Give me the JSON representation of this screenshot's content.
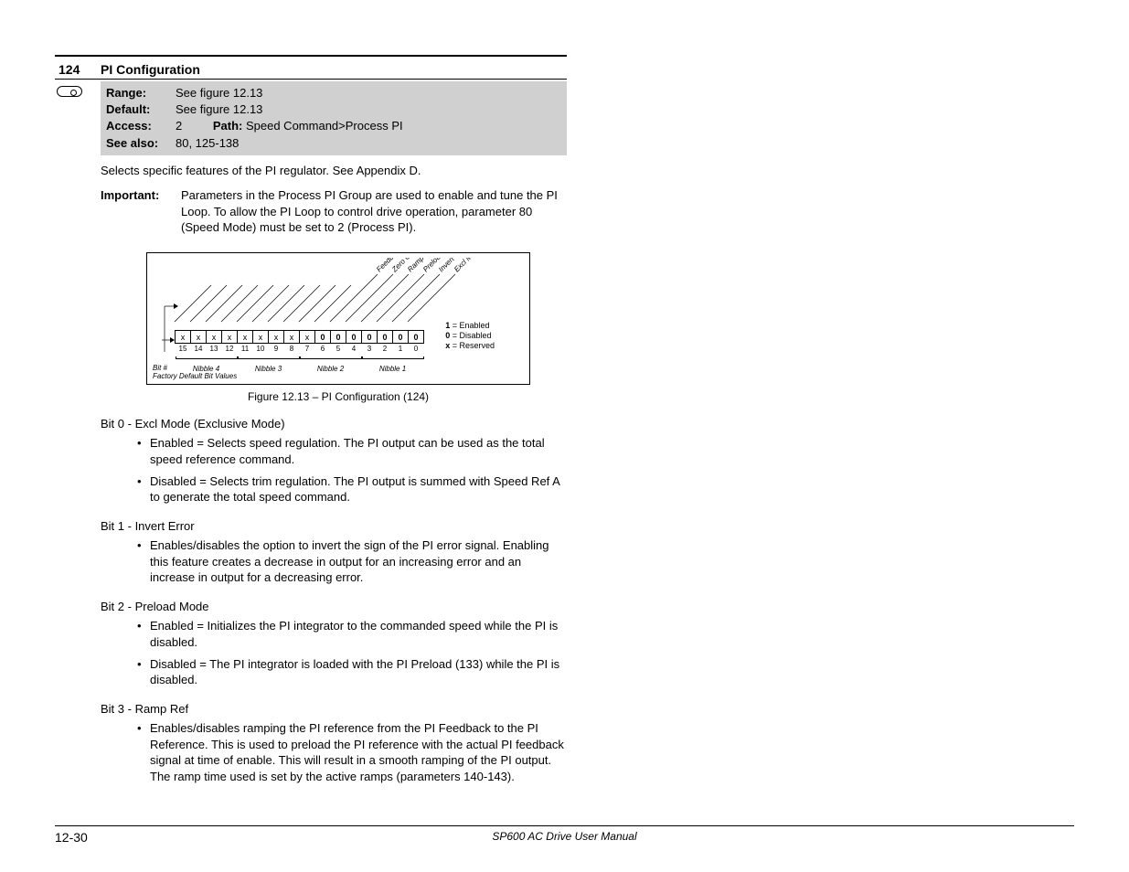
{
  "parameter": {
    "number": "124",
    "title": "PI Configuration",
    "range_label": "Range:",
    "range_value": "See figure 12.13",
    "default_label": "Default:",
    "default_value": "See figure 12.13",
    "access_label": "Access:",
    "access_value": "2",
    "path_label": "Path:",
    "path_value": "Speed Command>Process PI",
    "seealso_label": "See also:",
    "seealso_value": "80, 125-138"
  },
  "description": "Selects specific features of the PI regulator. See Appendix D.",
  "important": {
    "label": "Important:",
    "text": "Parameters in the Process PI Group are used to enable and tune the PI Loop. To allow the PI Loop to control drive operation, parameter 80 (Speed Mode) must be set to 2 (Process PI)."
  },
  "figure": {
    "caption": "Figure 12.13 – PI Configuration (124)",
    "bit_values": [
      "x",
      "x",
      "x",
      "x",
      "x",
      "x",
      "x",
      "x",
      "x",
      "0",
      "0",
      "0",
      "0",
      "0",
      "0",
      "0"
    ],
    "bit_numbers": [
      "15",
      "14",
      "13",
      "12",
      "11",
      "10",
      "9",
      "8",
      "7",
      "6",
      "5",
      "4",
      "3",
      "2",
      "1",
      "0"
    ],
    "nibbles": [
      "Nibble 4",
      "Nibble 3",
      "Nibble 2",
      "Nibble 1"
    ],
    "diag_labels": [
      "Feedback Sqrt",
      "Zero Clamp",
      "Ramp Ref",
      "Preload Mode",
      "Invert Error",
      "Excl Mode"
    ],
    "legend": {
      "l1": "1 = Enabled",
      "l2": "0 = Disabled",
      "l3": "x = Reserved"
    },
    "footer1": "Bit #",
    "footer2": "Factory Default Bit Values"
  },
  "bits": {
    "b0": {
      "title": "Bit 0 - Excl Mode (Exclusive Mode)",
      "i1": "Enabled = Selects speed regulation. The PI output can be used as the total speed reference command.",
      "i2": "Disabled = Selects trim regulation. The PI output is summed with Speed Ref A to generate the total speed command."
    },
    "b1": {
      "title": "Bit 1 - Invert Error",
      "i1": "Enables/disables the option to invert the sign of the PI error signal. Enabling this feature creates a decrease in output for an increasing error and an increase in output for a decreasing error."
    },
    "b2": {
      "title": "Bit 2 - Preload Mode",
      "i1": "Enabled = Initializes the PI integrator to the commanded speed while the PI is disabled.",
      "i2": "Disabled = The PI integrator is loaded with the PI Preload (133) while the PI is disabled."
    },
    "b3": {
      "title": "Bit 3 - Ramp Ref",
      "i1": "Enables/disables ramping the PI reference from the PI Feedback to the PI Reference. This is used to preload the PI reference with the actual PI feedback signal at time of enable. This will result in a smooth ramping of the PI output. The ramp time used is set by the active ramps (parameters 140-143)."
    }
  },
  "footer": {
    "page": "12-30",
    "title": "SP600 AC Drive User Manual"
  }
}
